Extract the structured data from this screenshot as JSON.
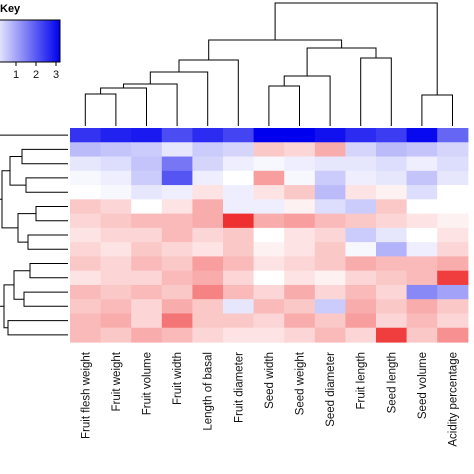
{
  "chart_data": {
    "type": "heatmap",
    "title": "",
    "color_key": {
      "title": "Key",
      "ticks": [
        "1",
        "2",
        "3"
      ],
      "low_color": "#ffffff",
      "high_color": "#0000ee",
      "negative_color": "#ee2222"
    },
    "columns": [
      "Fruit flesh weight",
      "Fruit weight",
      "Fruit volume",
      "Fruit width",
      "Length of basal",
      "Fruit diameter",
      "Seed width",
      "Seed weight",
      "Seed diameter",
      "Fruit length",
      "Seed length",
      "Seed volume",
      "Acidity percentage"
    ],
    "values": [
      [
        2.4,
        2.6,
        2.7,
        2.1,
        2.5,
        2.2,
        3.0,
        3.0,
        2.8,
        2.5,
        2.3,
        2.9,
        1.8
      ],
      [
        0.8,
        0.7,
        0.6,
        0.3,
        0.6,
        0.5,
        -0.4,
        -0.3,
        -0.6,
        0.5,
        0.8,
        0.7,
        0.5
      ],
      [
        0.3,
        0.4,
        0.7,
        1.6,
        0.5,
        0.2,
        0.1,
        0.2,
        0.3,
        0.3,
        0.4,
        0.2,
        0.4
      ],
      [
        0.1,
        0.2,
        0.6,
        2.0,
        0.2,
        0.0,
        -0.7,
        0.1,
        0.6,
        0.2,
        0.3,
        0.7,
        0.3
      ],
      [
        0.0,
        0.1,
        0.3,
        0.2,
        -0.2,
        0.2,
        -0.2,
        -0.4,
        0.8,
        -0.2,
        -0.1,
        0.4,
        0.0
      ],
      [
        -0.4,
        -0.3,
        0.0,
        -0.2,
        -0.6,
        0.2,
        0.2,
        -0.1,
        0.4,
        0.6,
        -0.4,
        0.0,
        0.0
      ],
      [
        -0.3,
        -0.4,
        -0.5,
        -0.5,
        -0.6,
        -1.5,
        -0.6,
        -0.7,
        -0.5,
        -0.4,
        -0.3,
        -0.2,
        -0.1
      ],
      [
        -0.2,
        -0.3,
        -0.3,
        -0.5,
        -0.3,
        -0.4,
        0.0,
        -0.2,
        -0.3,
        0.6,
        0.3,
        0.0,
        -0.2
      ],
      [
        -0.3,
        -0.2,
        -0.4,
        -0.3,
        -0.2,
        -0.4,
        -0.1,
        -0.2,
        -0.4,
        0.1,
        0.9,
        0.2,
        -0.3
      ],
      [
        -0.4,
        -0.3,
        -0.5,
        -0.4,
        -0.7,
        -0.5,
        -0.2,
        -0.3,
        -0.4,
        -0.6,
        -0.5,
        -0.5,
        -0.6
      ],
      [
        -0.2,
        -0.3,
        -0.3,
        -0.5,
        -0.6,
        -0.3,
        0.0,
        -0.2,
        -0.1,
        -0.3,
        -0.4,
        -0.5,
        -1.4
      ],
      [
        -0.5,
        -0.4,
        -0.5,
        -0.4,
        -0.9,
        -0.5,
        -0.3,
        -0.6,
        -0.3,
        -0.5,
        -0.3,
        1.4,
        1.1
      ],
      [
        -0.4,
        -0.5,
        -0.3,
        -0.6,
        -0.4,
        0.3,
        -0.5,
        -0.4,
        0.6,
        -0.6,
        -0.4,
        -0.6,
        -0.4
      ],
      [
        -0.5,
        -0.6,
        -0.3,
        -1.0,
        -0.4,
        -0.4,
        -0.3,
        -0.6,
        -0.4,
        -0.7,
        -0.3,
        -0.5,
        -0.3
      ],
      [
        -0.5,
        -0.4,
        -0.6,
        -0.5,
        -0.3,
        -0.2,
        -0.2,
        -0.3,
        -0.5,
        -0.3,
        -1.4,
        -0.4,
        -0.8
      ]
    ],
    "column_dendrogram": true,
    "row_dendrogram": true,
    "legend_placement": "top-left"
  }
}
